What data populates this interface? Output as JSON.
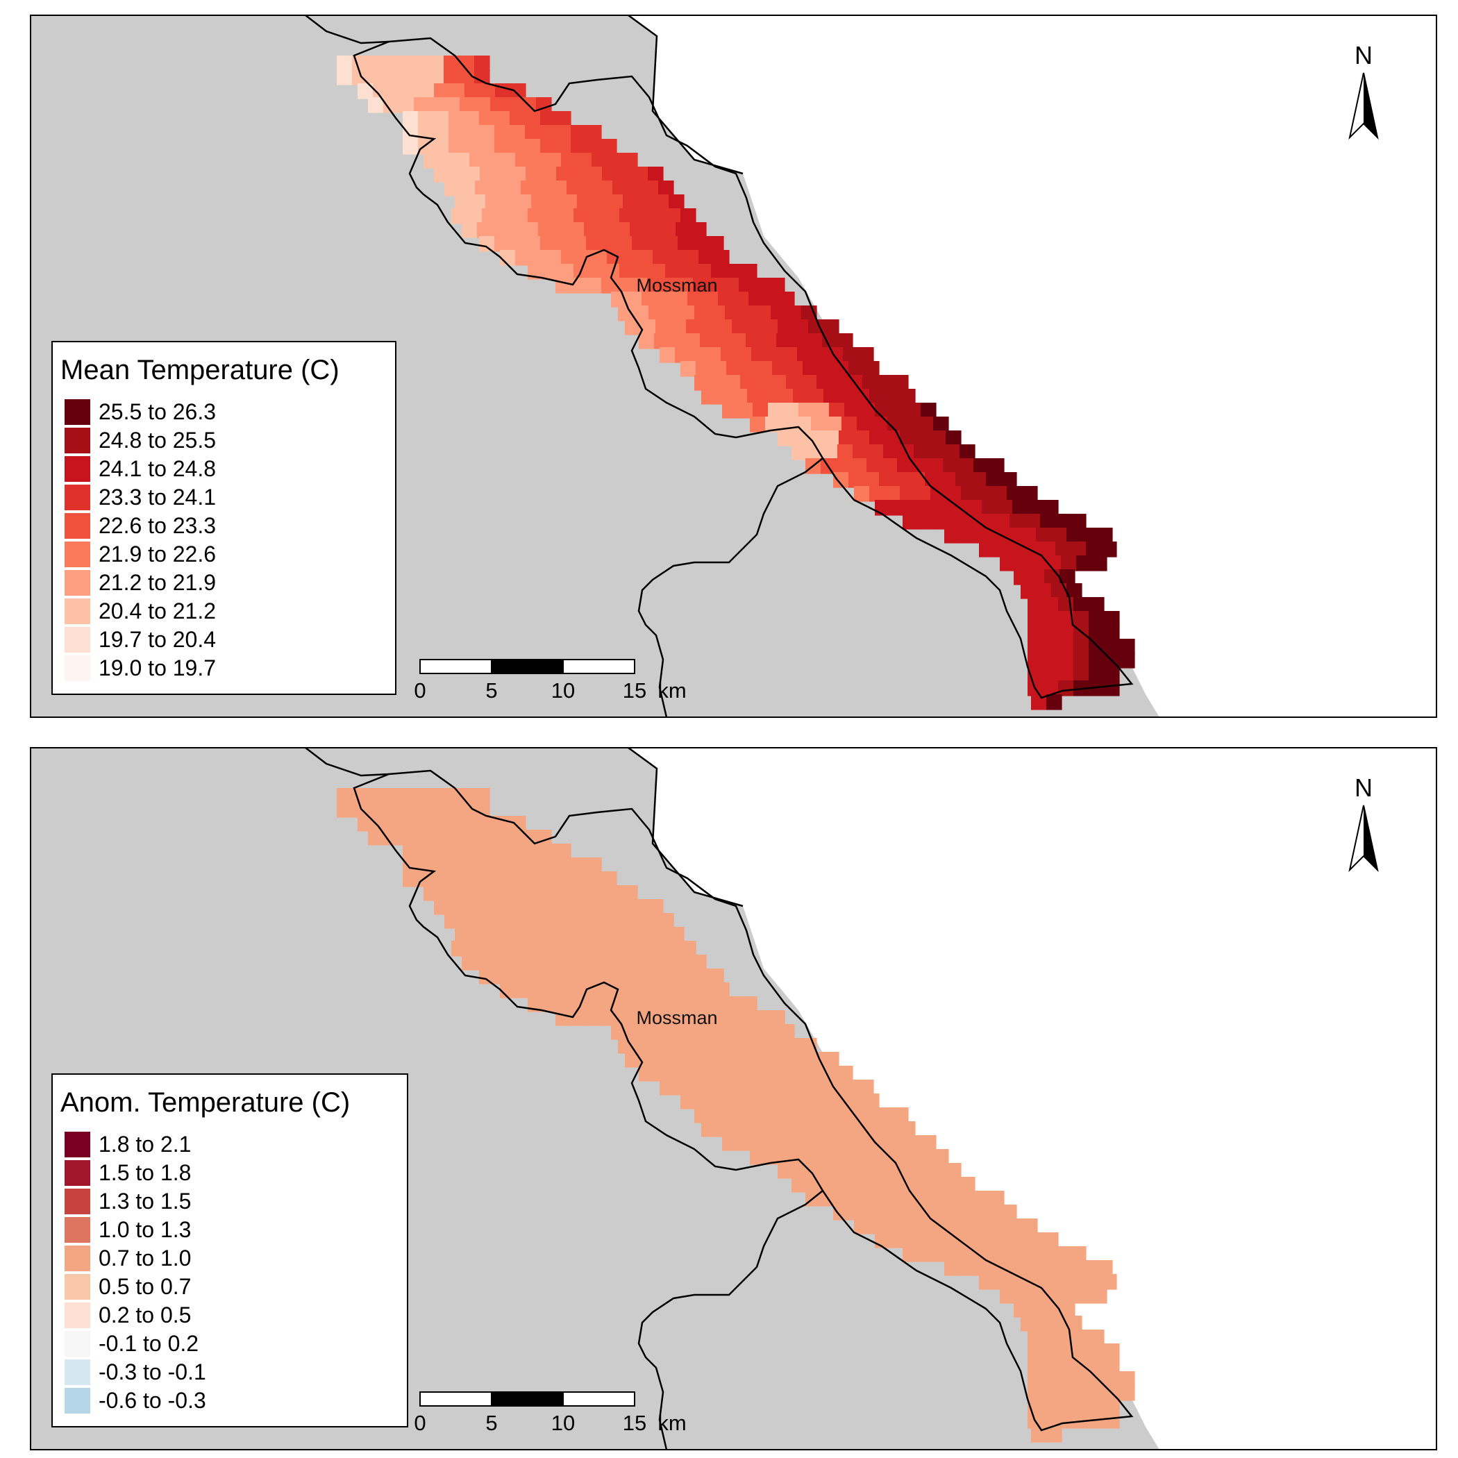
{
  "colors": {
    "land": "#cccccc",
    "sea": "#ffffff",
    "outline": "#000000"
  },
  "scale_bar": {
    "ticks": [
      "0",
      "5",
      "10",
      "15"
    ],
    "unit": "km"
  },
  "north_label": "N",
  "panels": [
    {
      "id": "mean",
      "place_label": "Mossman",
      "legend": {
        "title": "Mean Temperature (C)",
        "items": [
          {
            "label": "25.5 to 26.3",
            "color": "#67000d"
          },
          {
            "label": "24.8 to 25.5",
            "color": "#a50f15"
          },
          {
            "label": "24.1 to 24.8",
            "color": "#c8141c"
          },
          {
            "label": "23.3 to 24.1",
            "color": "#e0322b"
          },
          {
            "label": "22.6 to 23.3",
            "color": "#f1513c"
          },
          {
            "label": "21.9 to 22.6",
            "color": "#fb7a5c"
          },
          {
            "label": "21.2 to 21.9",
            "color": "#fc9e7f"
          },
          {
            "label": "20.4 to 21.2",
            "color": "#fdc1a8"
          },
          {
            "label": "19.7 to 20.4",
            "color": "#fee0d3"
          },
          {
            "label": "19.0 to 19.7",
            "color": "#fff5f0"
          }
        ]
      }
    },
    {
      "id": "anom",
      "place_label": "Mossman",
      "uniform_fill": "#f4a582",
      "legend": {
        "title": "Anom. Temperature (C)",
        "items": [
          {
            "label": "1.8 to 2.1",
            "color": "#7a0022"
          },
          {
            "label": "1.5 to 1.8",
            "color": "#a3152b"
          },
          {
            "label": "1.3 to 1.5",
            "color": "#c6433f"
          },
          {
            "label": "1.0 to 1.3",
            "color": "#de7560"
          },
          {
            "label": "0.7 to 1.0",
            "color": "#f4a582"
          },
          {
            "label": "0.5 to 0.7",
            "color": "#f9c6a9"
          },
          {
            "label": "0.2 to 0.5",
            "color": "#fde0d2"
          },
          {
            "label": "-0.1 to 0.2",
            "color": "#f7f7f7"
          },
          {
            "label": "-0.3 to -0.1",
            "color": "#d6e7f1"
          },
          {
            "label": "-0.6 to -0.3",
            "color": "#b4d6e8"
          }
        ]
      }
    }
  ]
}
